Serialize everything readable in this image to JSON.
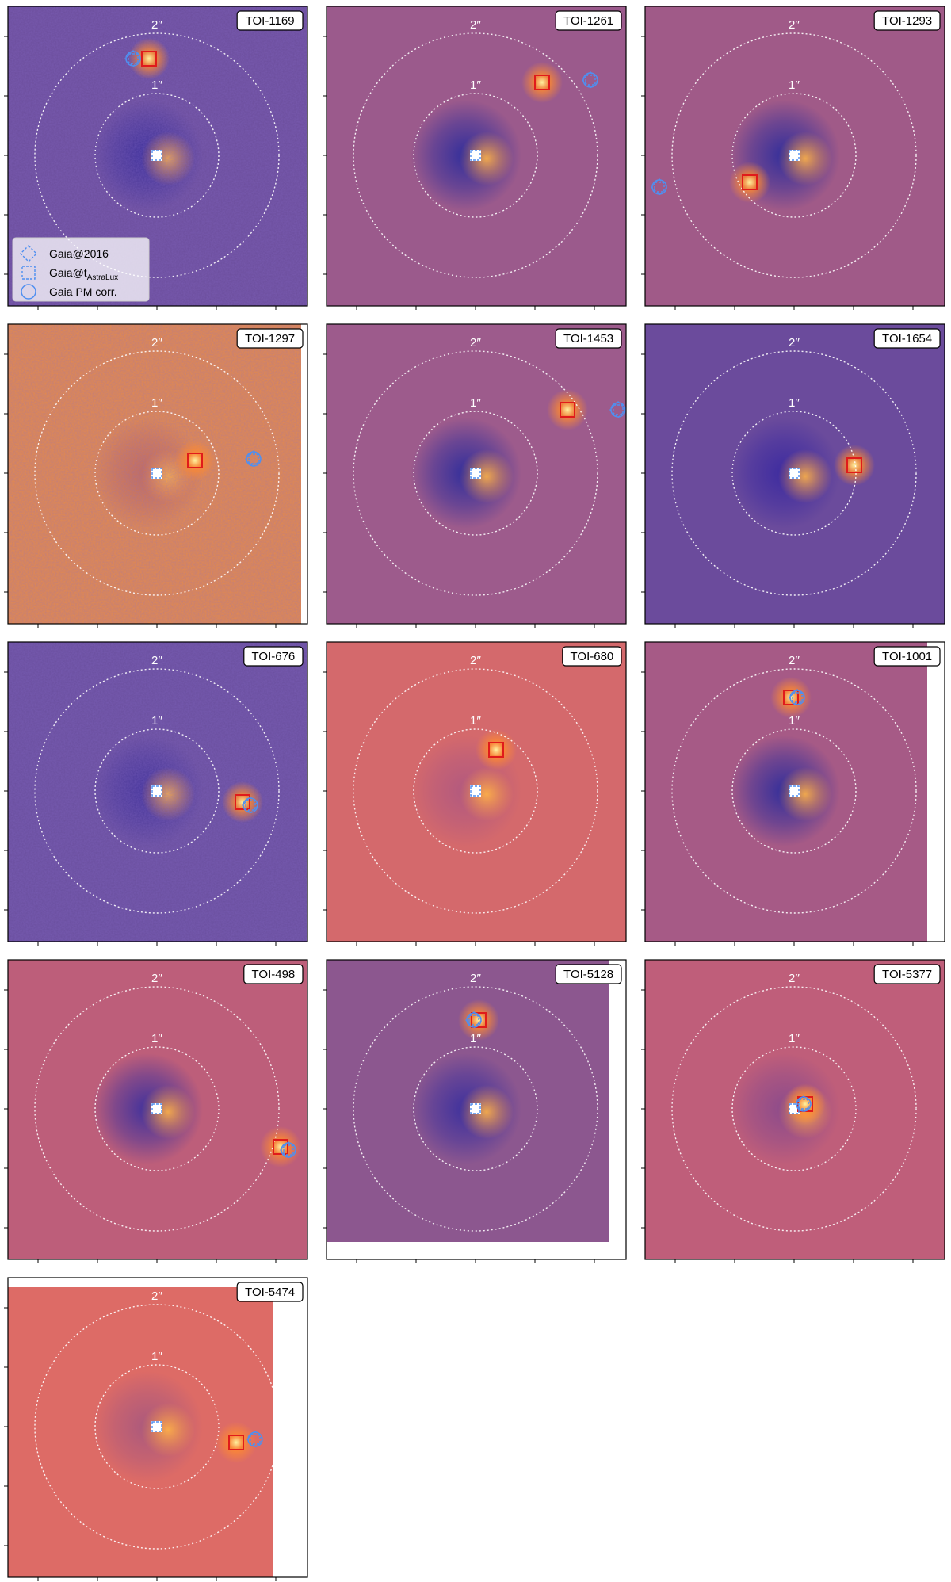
{
  "panels": [
    {
      "id": "TOI-1169",
      "bg": "#6c4e9c",
      "noise": true,
      "dip": "#3a2e9a",
      "comp": {
        "dx": -10,
        "dy": -122
      },
      "marks": {
        "dx": -30,
        "dy": -122
      },
      "legend": true
    },
    {
      "id": "TOI-1261",
      "bg": "#9b5a8c",
      "noise": false,
      "dip": "#2d2c9c",
      "comp": {
        "dx": 84,
        "dy": -92
      },
      "marks": {
        "dx": 145,
        "dy": -95
      }
    },
    {
      "id": "TOI-1293",
      "bg": "#a05a88",
      "noise": false,
      "dip": "#2d2c9c",
      "comp": {
        "dx": -56,
        "dy": 34
      },
      "marks": {
        "dx": -170,
        "dy": 40
      }
    },
    {
      "id": "TOI-1297",
      "bg": "#e58a4a",
      "noise": true,
      "dip": "#c36a5a",
      "comp": {
        "dx": 48,
        "dy": -16
      },
      "marks": {
        "dx": 122,
        "dy": -18
      },
      "blankRight": 8
    },
    {
      "id": "TOI-1453",
      "bg": "#9d5b8c",
      "noise": false,
      "dip": "#2d2c9c",
      "comp": {
        "dx": 116,
        "dy": -80
      },
      "marks": {
        "dx": 180,
        "dy": -80
      }
    },
    {
      "id": "TOI-1654",
      "bg": "#6b4b9c",
      "noise": false,
      "dip": "#3b2aa0",
      "comp": {
        "dx": 76,
        "dy": -10
      },
      "marks": {
        "dx": 0,
        "dy": 0
      }
    },
    {
      "id": "TOI-676",
      "bg": "#6a4f9e",
      "noise": true,
      "dip": "#41329a",
      "comp": {
        "dx": 108,
        "dy": 14
      },
      "marks": {
        "dx": 118,
        "dy": 18
      }
    },
    {
      "id": "TOI-680",
      "bg": "#d4696c",
      "noise": false,
      "dip": "#b05880",
      "comp": {
        "dx": 26,
        "dy": -52
      },
      "marks": {
        "dx": 0,
        "dy": 0
      }
    },
    {
      "id": "TOI-1001",
      "bg": "#a65a86",
      "noise": false,
      "dip": "#2d2c9c",
      "comp": {
        "dx": -4,
        "dy": -118
      },
      "marks": {
        "dx": 4,
        "dy": -118
      },
      "blankRight": 22
    },
    {
      "id": "TOI-498",
      "bg": "#bd5e7a",
      "noise": false,
      "dip": "#3a2f9e",
      "comp": {
        "dx": 156,
        "dy": 48
      },
      "marks": {
        "dx": 166,
        "dy": 52
      }
    },
    {
      "id": "TOI-5128",
      "bg": "#8c578f",
      "noise": false,
      "dip": "#3a2f9e",
      "comp": {
        "dx": 4,
        "dy": -112
      },
      "marks": {
        "dx": -2,
        "dy": -112
      },
      "blankRight": 22,
      "blankBottom": 22
    },
    {
      "id": "TOI-5377",
      "bg": "#bf5e7a",
      "noise": false,
      "dip": "#8a4a8c",
      "comp": {
        "dx": 14,
        "dy": -6
      },
      "marks": {
        "dx": 12,
        "dy": -6
      }
    },
    {
      "id": "TOI-5474",
      "bg": "#dd6b66",
      "noise": false,
      "dip": "#a8587e",
      "comp": {
        "dx": 100,
        "dy": 20
      },
      "marks": {
        "dx": 124,
        "dy": 16
      },
      "blankRight": 44,
      "topBlank": 12
    }
  ],
  "ring_labels": {
    "inner": "1′′",
    "outer": "2′′"
  },
  "legend": {
    "items": [
      {
        "label": "Gaia@2016",
        "icon": "diamond-dashed-icon"
      },
      {
        "label": "Gaia@t",
        "sub": "AstraLux",
        "icon": "square-dashed-icon"
      },
      {
        "label": "Gaia PM corr.",
        "icon": "circle-icon"
      }
    ]
  },
  "colors": {
    "companion": "#fff3a0",
    "gaia": "#4f8ff0",
    "box": "#e01b1b"
  }
}
